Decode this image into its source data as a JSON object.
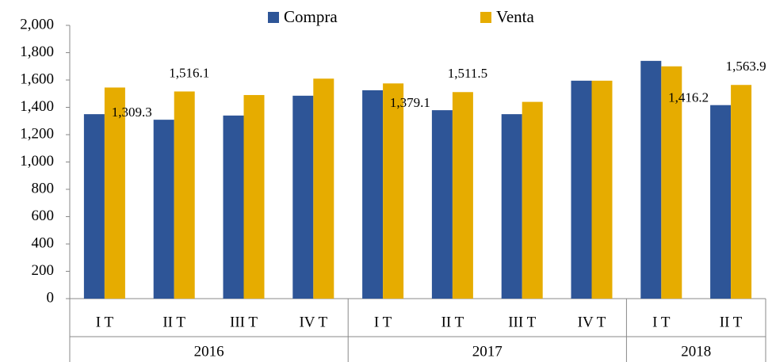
{
  "chart_data": {
    "type": "bar",
    "categories": [
      "I T",
      "II T",
      "III T",
      "IV T",
      "I T",
      "II T",
      "III T",
      "IV T",
      "I T",
      "II T"
    ],
    "years": [
      "2016",
      "2016",
      "2016",
      "2016",
      "2017",
      "2017",
      "2017",
      "2017",
      "2018",
      "2018"
    ],
    "series": [
      {
        "name": "Compra",
        "color": "#2e5597",
        "values": [
          1350,
          1309.3,
          1340,
          1485,
          1525,
          1379.1,
          1350,
          1595,
          1740,
          1416.2
        ],
        "value_labels": [
          null,
          "1,309.3",
          null,
          null,
          null,
          "1,379.1",
          null,
          null,
          null,
          "1,416.2"
        ]
      },
      {
        "name": "Venta",
        "color": "#e6ac00",
        "values": [
          1545,
          1516.1,
          1490,
          1610,
          1575,
          1511.5,
          1440,
          1595,
          1700,
          1563.9
        ],
        "value_labels": [
          null,
          "1,516.1",
          null,
          null,
          null,
          "1,511.5",
          null,
          null,
          null,
          "1,563.9"
        ]
      }
    ],
    "ylim": [
      0,
      2000
    ],
    "yticks": [
      0,
      200,
      400,
      600,
      800,
      {
        "value": 1000,
        "label": "1,000"
      },
      {
        "value": 1200,
        "label": "1,200"
      },
      {
        "value": 1400,
        "label": "1,400"
      },
      {
        "value": 1600,
        "label": "1,600"
      },
      {
        "value": 1800,
        "label": "1,800"
      },
      {
        "value": 2000,
        "label": "2,000"
      }
    ],
    "legend": "top",
    "grid": false
  }
}
